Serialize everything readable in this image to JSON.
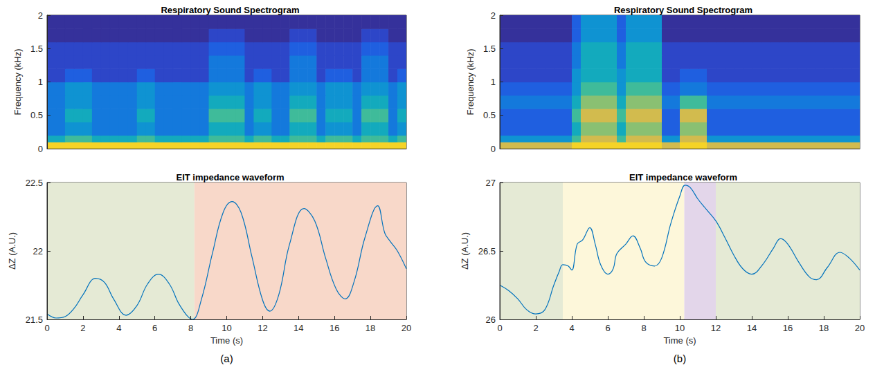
{
  "chart_data": [
    {
      "type": "heatmap",
      "title": "Respiratory Sound Spectrogram",
      "y_label": "Frequency (kHz)",
      "x_bins": [
        0,
        0.5,
        1,
        1.5,
        2,
        2.5,
        3,
        3.5,
        4,
        4.5,
        5,
        5.5,
        6,
        6.5,
        7,
        7.5,
        8,
        8.5,
        9,
        9.5,
        10,
        10.5,
        11,
        11.5,
        12,
        12.5,
        13,
        13.5,
        14,
        14.5,
        15,
        15.5,
        16,
        16.5,
        17,
        17.5,
        18,
        18.5,
        19,
        19.5,
        20
      ],
      "y_bins": [
        0,
        0.1,
        0.2,
        0.4,
        0.6,
        0.8,
        1,
        1.2,
        1.4,
        1.6,
        1.8,
        2
      ],
      "cells": [
        [
          9,
          9,
          9,
          9,
          9,
          9,
          9,
          9,
          9,
          9,
          9,
          9,
          9,
          9,
          9,
          9,
          9,
          9,
          9,
          9,
          9,
          9,
          9,
          9,
          9,
          9,
          9,
          9,
          9,
          9,
          9,
          9,
          9,
          9,
          9,
          9,
          9,
          9,
          9,
          9
        ],
        [
          5,
          5,
          6,
          6,
          6,
          5,
          5,
          5,
          5,
          5,
          6,
          6,
          5,
          5,
          5,
          5,
          5,
          5,
          6,
          6,
          6,
          6,
          5,
          6,
          6,
          5,
          5,
          6,
          6,
          6,
          5,
          6,
          6,
          6,
          5,
          6,
          6,
          6,
          5,
          6
        ],
        [
          3,
          3,
          4,
          4,
          4,
          3,
          3,
          3,
          3,
          3,
          4,
          4,
          3,
          3,
          3,
          3,
          3,
          3,
          5,
          5,
          5,
          5,
          3,
          4,
          4,
          3,
          3,
          5,
          5,
          5,
          3,
          4,
          4,
          4,
          3,
          5,
          5,
          5,
          3,
          4
        ],
        [
          3,
          3,
          5,
          5,
          5,
          3,
          3,
          3,
          3,
          3,
          5,
          5,
          3,
          3,
          3,
          3,
          3,
          3,
          6,
          6,
          6,
          6,
          3,
          5,
          5,
          3,
          3,
          6,
          6,
          6,
          3,
          5,
          5,
          5,
          3,
          6,
          6,
          6,
          3,
          5
        ],
        [
          3,
          3,
          4,
          4,
          4,
          3,
          3,
          3,
          3,
          3,
          4,
          4,
          3,
          3,
          3,
          3,
          3,
          3,
          5,
          5,
          5,
          5,
          3,
          4,
          4,
          3,
          3,
          5,
          5,
          5,
          3,
          4,
          4,
          4,
          3,
          5,
          5,
          5,
          3,
          4
        ],
        [
          3,
          3,
          4,
          4,
          4,
          3,
          3,
          3,
          3,
          3,
          4,
          4,
          3,
          3,
          3,
          3,
          3,
          3,
          4,
          4,
          4,
          4,
          3,
          4,
          4,
          3,
          3,
          4,
          4,
          4,
          3,
          4,
          4,
          4,
          3,
          4,
          4,
          4,
          3,
          4
        ],
        [
          1,
          1,
          2,
          2,
          2,
          1,
          1,
          1,
          1,
          1,
          2,
          2,
          1,
          1,
          1,
          1,
          1,
          1,
          3,
          3,
          3,
          3,
          1,
          2,
          2,
          1,
          1,
          3,
          3,
          3,
          1,
          2,
          2,
          2,
          1,
          3,
          3,
          3,
          1,
          2
        ],
        [
          1,
          1,
          1,
          1,
          1,
          1,
          1,
          1,
          1,
          1,
          1,
          1,
          1,
          1,
          1,
          1,
          1,
          1,
          3,
          3,
          3,
          3,
          1,
          1,
          1,
          1,
          1,
          3,
          3,
          3,
          1,
          1,
          1,
          1,
          1,
          3,
          3,
          3,
          1,
          1
        ],
        [
          1,
          1,
          1,
          1,
          1,
          1,
          1,
          1,
          1,
          1,
          1,
          1,
          1,
          1,
          1,
          1,
          1,
          1,
          2,
          2,
          2,
          2,
          1,
          1,
          1,
          1,
          1,
          2,
          2,
          2,
          1,
          1,
          1,
          1,
          1,
          2,
          2,
          2,
          1,
          1
        ],
        [
          0,
          0,
          0,
          0,
          0,
          0,
          0,
          0,
          0,
          0,
          0,
          0,
          0,
          0,
          0,
          0,
          0,
          0,
          1,
          1,
          1,
          1,
          0,
          0,
          0,
          0,
          0,
          1,
          1,
          1,
          0,
          0,
          0,
          0,
          0,
          1,
          1,
          1,
          0,
          0
        ],
        [
          0,
          0,
          0,
          0,
          0,
          0,
          0,
          0,
          0,
          0,
          0,
          0,
          0,
          0,
          0,
          0,
          0,
          0,
          0,
          0,
          0,
          0,
          0,
          0,
          0,
          0,
          0,
          0,
          0,
          0,
          0,
          0,
          0,
          0,
          0,
          0,
          0,
          0,
          0,
          0
        ]
      ],
      "xlim": [
        0,
        20
      ],
      "ylim": [
        0,
        2
      ],
      "yticks": [
        0,
        0.5,
        1,
        1.5,
        2
      ],
      "tick_labels": "y",
      "grid": false
    },
    {
      "type": "line",
      "title": "EIT impedance waveform",
      "x_label": "Time (s)",
      "y_label": "ΔZ (A.U.)",
      "caption": "(a)",
      "x": [
        0,
        0.5,
        1,
        1.5,
        2,
        2.7,
        3.2,
        3.7,
        4.4,
        5,
        5.6,
        6.2,
        6.8,
        7.4,
        8.1,
        8.6,
        9.2,
        9.8,
        10.3,
        10.8,
        11.4,
        12,
        12.4,
        12.9,
        13.5,
        14.3,
        14.9,
        15.5,
        16.1,
        16.6,
        17.1,
        17.7,
        18.4,
        18.8,
        19.1,
        19.5,
        20
      ],
      "values": [
        21.54,
        21.51,
        21.52,
        21.58,
        21.68,
        21.8,
        21.77,
        21.65,
        21.53,
        21.6,
        21.76,
        21.83,
        21.76,
        21.6,
        21.5,
        21.65,
        21.98,
        22.28,
        22.36,
        22.28,
        21.96,
        21.64,
        21.56,
        21.68,
        22.05,
        22.31,
        22.22,
        21.95,
        21.72,
        21.65,
        21.78,
        22.1,
        22.33,
        22.13,
        22.07,
        22.0,
        21.87
      ],
      "color": "#0072bd",
      "regions": [
        {
          "x0": 0,
          "x1": 8.2,
          "color": "#e5ead5"
        },
        {
          "x0": 8.2,
          "x1": 20,
          "color": "#f8d8c9"
        }
      ],
      "xlim": [
        0,
        20
      ],
      "xticks": [
        0,
        2,
        4,
        6,
        8,
        10,
        12,
        14,
        16,
        18,
        20
      ],
      "ylim": [
        21.5,
        22.5
      ],
      "yticks": [
        21.5,
        22,
        22.5
      ],
      "grid": false
    },
    {
      "type": "heatmap",
      "title": "Respiratory Sound Spectrogram",
      "y_label": "Frequency (kHz)",
      "x_bins": [
        0,
        0.5,
        1,
        1.5,
        2,
        2.5,
        3,
        3.5,
        4,
        4.5,
        5,
        5.5,
        6,
        6.5,
        7,
        7.5,
        8,
        8.5,
        9,
        9.5,
        10,
        10.5,
        11,
        11.5,
        12,
        12.5,
        13,
        13.5,
        14,
        14.5,
        15,
        15.5,
        16,
        16.5,
        17,
        17.5,
        18,
        18.5,
        19,
        19.5,
        20
      ],
      "y_bins": [
        0,
        0.1,
        0.2,
        0.4,
        0.6,
        0.8,
        1,
        1.2,
        1.4,
        1.6,
        1.8,
        2
      ],
      "cells": [
        [
          8,
          8,
          8,
          8,
          8,
          8,
          8,
          8,
          9,
          9,
          9,
          9,
          9,
          9,
          9,
          9,
          9,
          9,
          8,
          8,
          9,
          9,
          9,
          8,
          8,
          8,
          8,
          8,
          8,
          8,
          8,
          8,
          8,
          8,
          8,
          8,
          8,
          8,
          8,
          8
        ],
        [
          4,
          4,
          4,
          4,
          4,
          4,
          4,
          4,
          6,
          8,
          8,
          8,
          8,
          6,
          8,
          8,
          8,
          8,
          4,
          4,
          8,
          8,
          8,
          4,
          4,
          4,
          4,
          4,
          4,
          4,
          4,
          4,
          4,
          4,
          4,
          4,
          4,
          4,
          4,
          4
        ],
        [
          2,
          2,
          2,
          2,
          2,
          2,
          2,
          2,
          5,
          7,
          7,
          7,
          7,
          5,
          7,
          7,
          7,
          7,
          2,
          2,
          7,
          7,
          7,
          2,
          2,
          2,
          2,
          2,
          2,
          2,
          2,
          2,
          2,
          2,
          2,
          2,
          2,
          2,
          2,
          2
        ],
        [
          2,
          2,
          2,
          2,
          2,
          2,
          2,
          2,
          6,
          8,
          8,
          8,
          8,
          6,
          8,
          8,
          8,
          8,
          2,
          2,
          8,
          8,
          8,
          2,
          2,
          2,
          2,
          2,
          2,
          2,
          2,
          2,
          2,
          2,
          2,
          2,
          2,
          2,
          2,
          2
        ],
        [
          3,
          3,
          3,
          3,
          3,
          3,
          3,
          3,
          5,
          7,
          7,
          7,
          7,
          5,
          7,
          7,
          7,
          7,
          3,
          3,
          6,
          6,
          6,
          3,
          3,
          3,
          3,
          3,
          3,
          3,
          3,
          3,
          3,
          3,
          3,
          3,
          3,
          3,
          3,
          3
        ],
        [
          2,
          2,
          2,
          2,
          2,
          2,
          2,
          2,
          4,
          6,
          6,
          6,
          6,
          4,
          6,
          6,
          6,
          6,
          2,
          2,
          3,
          3,
          3,
          2,
          2,
          2,
          2,
          2,
          2,
          2,
          2,
          2,
          2,
          2,
          2,
          2,
          2,
          2,
          2,
          2
        ],
        [
          1,
          1,
          1,
          1,
          1,
          1,
          1,
          1,
          4,
          5,
          5,
          5,
          5,
          4,
          5,
          5,
          5,
          5,
          1,
          1,
          2,
          2,
          2,
          1,
          1,
          1,
          1,
          1,
          1,
          1,
          1,
          1,
          1,
          1,
          1,
          1,
          1,
          1,
          1,
          1
        ],
        [
          1,
          1,
          1,
          1,
          1,
          1,
          1,
          1,
          3,
          5,
          5,
          5,
          5,
          3,
          5,
          5,
          5,
          5,
          1,
          1,
          1,
          1,
          1,
          1,
          1,
          1,
          1,
          1,
          1,
          1,
          1,
          1,
          1,
          1,
          1,
          1,
          1,
          1,
          1,
          1
        ],
        [
          1,
          1,
          1,
          1,
          1,
          1,
          1,
          1,
          3,
          5,
          5,
          5,
          5,
          3,
          5,
          5,
          5,
          5,
          1,
          1,
          1,
          1,
          1,
          1,
          1,
          1,
          1,
          1,
          1,
          1,
          1,
          1,
          1,
          1,
          1,
          1,
          1,
          1,
          1,
          1
        ],
        [
          0,
          0,
          0,
          0,
          0,
          0,
          0,
          0,
          2,
          4,
          4,
          4,
          4,
          2,
          4,
          4,
          4,
          4,
          0,
          0,
          0,
          0,
          0,
          0,
          0,
          0,
          0,
          0,
          0,
          0,
          0,
          0,
          0,
          0,
          0,
          0,
          0,
          0,
          0,
          0
        ],
        [
          0,
          0,
          0,
          0,
          0,
          0,
          0,
          0,
          2,
          4,
          4,
          4,
          4,
          2,
          4,
          4,
          4,
          4,
          0,
          0,
          0,
          0,
          0,
          0,
          0,
          0,
          0,
          0,
          0,
          0,
          0,
          0,
          0,
          0,
          0,
          0,
          0,
          0,
          0,
          0
        ]
      ],
      "xlim": [
        0,
        20
      ],
      "ylim": [
        0,
        2
      ],
      "yticks": [
        0,
        0.5,
        1,
        1.5,
        2
      ],
      "tick_labels": "y",
      "grid": false
    },
    {
      "type": "line",
      "title": "EIT impedance waveform",
      "x_label": "Time (s)",
      "y_label": "ΔZ (A.U.)",
      "caption": "(b)",
      "x": [
        0,
        0.5,
        1,
        1.5,
        2,
        2.5,
        3,
        3.3,
        3.5,
        3.8,
        4,
        4.3,
        4.6,
        5,
        5.3,
        5.6,
        6,
        6.3,
        6.5,
        7,
        7.4,
        7.8,
        8.1,
        8.6,
        9,
        9.5,
        10,
        10.3,
        10.6,
        11,
        11.5,
        12,
        12.5,
        13,
        13.5,
        14,
        14.6,
        15.2,
        15.6,
        16,
        16.6,
        17.2,
        17.6,
        18.2,
        18.9,
        19.4,
        20
      ],
      "values": [
        26.25,
        26.21,
        26.15,
        26.07,
        26.04,
        26.07,
        26.25,
        26.35,
        26.4,
        26.39,
        26.36,
        26.55,
        26.58,
        26.67,
        26.55,
        26.4,
        26.33,
        26.37,
        26.48,
        26.55,
        26.61,
        26.52,
        26.42,
        26.39,
        26.45,
        26.7,
        26.9,
        26.98,
        26.96,
        26.88,
        26.8,
        26.72,
        26.6,
        26.47,
        26.37,
        26.33,
        26.4,
        26.52,
        26.59,
        26.55,
        26.42,
        26.31,
        26.29,
        26.38,
        26.49,
        26.45,
        26.36
      ],
      "color": "#0072bd",
      "regions": [
        {
          "x0": 0,
          "x1": 3.5,
          "color": "#e5ead5"
        },
        {
          "x0": 3.5,
          "x1": 10.25,
          "color": "#fdf7da"
        },
        {
          "x0": 10.25,
          "x1": 12,
          "color": "#e3d6ea"
        },
        {
          "x0": 12,
          "x1": 20,
          "color": "#e5ead5"
        }
      ],
      "xlim": [
        0,
        20
      ],
      "xticks": [
        0,
        2,
        4,
        6,
        8,
        10,
        12,
        14,
        16,
        18,
        20
      ],
      "ylim": [
        26,
        27
      ],
      "yticks": [
        26,
        26.5,
        27
      ],
      "grid": false
    }
  ]
}
